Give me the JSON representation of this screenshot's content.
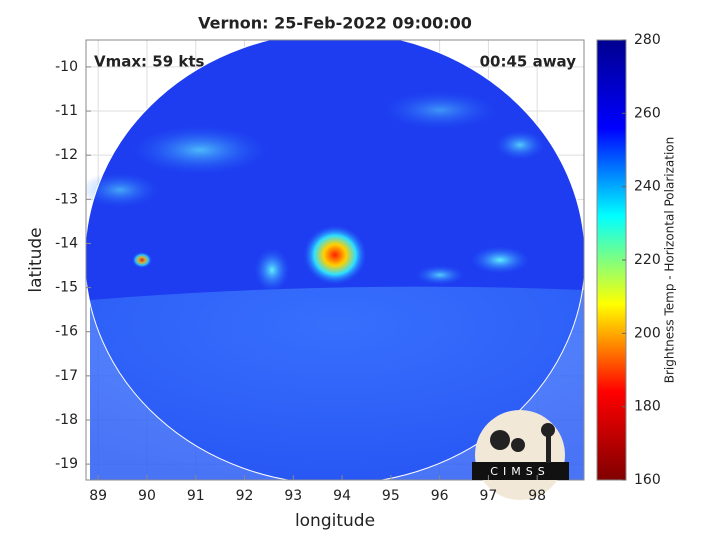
{
  "chart_data": {
    "type": "image",
    "title": "Vernon: 25-Feb-2022 09:00:00",
    "annotations": [
      "Vmax: 59 kts",
      "00:45 away"
    ],
    "xlabel": "longitude",
    "ylabel": "latitude",
    "xlim": [
      88.75,
      98.96
    ],
    "ylim": [
      -19.36,
      -9.39
    ],
    "xticks": [
      89,
      90,
      91,
      92,
      93,
      94,
      95,
      96,
      97,
      98
    ],
    "yticks": [
      -19,
      -18,
      -17,
      -16,
      -15,
      -14,
      -13,
      -12,
      -11,
      -10
    ],
    "grid": true,
    "colorbar": {
      "label": "Brightness Temp - Horizontal Polarization",
      "lim": [
        160,
        280
      ],
      "ticks": [
        160,
        180,
        200,
        220,
        240,
        260,
        280
      ],
      "colors": [
        "#800000",
        "#ff0000",
        "#ffff00",
        "#00ffff",
        "#0000ff",
        "#00008f"
      ]
    },
    "logo_text": "CIMSS"
  }
}
